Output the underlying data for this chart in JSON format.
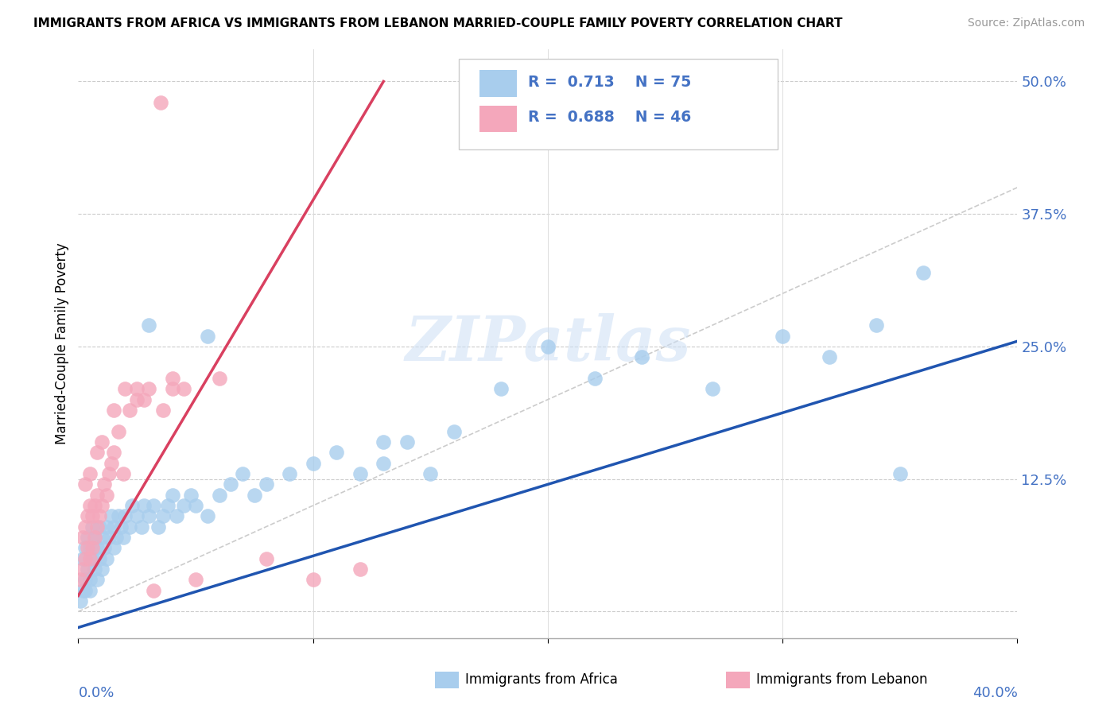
{
  "title": "IMMIGRANTS FROM AFRICA VS IMMIGRANTS FROM LEBANON MARRIED-COUPLE FAMILY POVERTY CORRELATION CHART",
  "source": "Source: ZipAtlas.com",
  "ylabel": "Married-Couple Family Poverty",
  "xlim": [
    0.0,
    0.4
  ],
  "ylim": [
    -0.025,
    0.53
  ],
  "legend_africa_R": "0.713",
  "legend_africa_N": "75",
  "legend_lebanon_R": "0.688",
  "legend_lebanon_N": "46",
  "africa_color": "#A8CDED",
  "lebanon_color": "#F4A7BB",
  "africa_line_color": "#2055B0",
  "lebanon_line_color": "#D94060",
  "diagonal_color": "#CCCCCC",
  "watermark": "ZIPatlas",
  "africa_line_x0": 0.0,
  "africa_line_y0": -0.015,
  "africa_line_x1": 0.4,
  "africa_line_y1": 0.255,
  "lebanon_line_x0": 0.0,
  "lebanon_line_y0": 0.015,
  "lebanon_line_x1": 0.13,
  "lebanon_line_y1": 0.5,
  "ytick_vals": [
    0.0,
    0.125,
    0.25,
    0.375,
    0.5
  ],
  "ytick_labels": [
    "",
    "12.5%",
    "25.0%",
    "37.5%",
    "50.0%"
  ],
  "africa_x": [
    0.001,
    0.002,
    0.002,
    0.003,
    0.003,
    0.003,
    0.004,
    0.004,
    0.005,
    0.005,
    0.005,
    0.006,
    0.006,
    0.007,
    0.007,
    0.008,
    0.008,
    0.009,
    0.009,
    0.01,
    0.01,
    0.011,
    0.012,
    0.012,
    0.013,
    0.014,
    0.015,
    0.015,
    0.016,
    0.017,
    0.018,
    0.019,
    0.02,
    0.022,
    0.023,
    0.025,
    0.027,
    0.028,
    0.03,
    0.032,
    0.034,
    0.036,
    0.038,
    0.04,
    0.042,
    0.045,
    0.048,
    0.05,
    0.055,
    0.06,
    0.065,
    0.07,
    0.075,
    0.08,
    0.09,
    0.1,
    0.11,
    0.12,
    0.13,
    0.14,
    0.15,
    0.16,
    0.18,
    0.2,
    0.22,
    0.24,
    0.27,
    0.3,
    0.32,
    0.34,
    0.35,
    0.36,
    0.03,
    0.055,
    0.13
  ],
  "africa_y": [
    0.01,
    0.02,
    0.05,
    0.03,
    0.06,
    0.02,
    0.04,
    0.07,
    0.03,
    0.06,
    0.02,
    0.05,
    0.08,
    0.04,
    0.07,
    0.03,
    0.06,
    0.05,
    0.08,
    0.04,
    0.07,
    0.06,
    0.08,
    0.05,
    0.07,
    0.09,
    0.06,
    0.08,
    0.07,
    0.09,
    0.08,
    0.07,
    0.09,
    0.08,
    0.1,
    0.09,
    0.08,
    0.1,
    0.09,
    0.1,
    0.08,
    0.09,
    0.1,
    0.11,
    0.09,
    0.1,
    0.11,
    0.1,
    0.09,
    0.11,
    0.12,
    0.13,
    0.11,
    0.12,
    0.13,
    0.14,
    0.15,
    0.13,
    0.14,
    0.16,
    0.13,
    0.17,
    0.21,
    0.25,
    0.22,
    0.24,
    0.21,
    0.26,
    0.24,
    0.27,
    0.13,
    0.32,
    0.27,
    0.26,
    0.16
  ],
  "lebanon_x": [
    0.001,
    0.002,
    0.002,
    0.003,
    0.003,
    0.004,
    0.004,
    0.005,
    0.005,
    0.006,
    0.006,
    0.007,
    0.007,
    0.008,
    0.008,
    0.009,
    0.01,
    0.011,
    0.012,
    0.013,
    0.014,
    0.015,
    0.017,
    0.019,
    0.022,
    0.025,
    0.028,
    0.032,
    0.036,
    0.04,
    0.003,
    0.005,
    0.008,
    0.01,
    0.015,
    0.02,
    0.025,
    0.03,
    0.035,
    0.04,
    0.045,
    0.05,
    0.06,
    0.08,
    0.1,
    0.12
  ],
  "lebanon_y": [
    0.03,
    0.04,
    0.07,
    0.05,
    0.08,
    0.06,
    0.09,
    0.05,
    0.1,
    0.06,
    0.09,
    0.07,
    0.1,
    0.08,
    0.11,
    0.09,
    0.1,
    0.12,
    0.11,
    0.13,
    0.14,
    0.15,
    0.17,
    0.13,
    0.19,
    0.21,
    0.2,
    0.02,
    0.19,
    0.21,
    0.12,
    0.13,
    0.15,
    0.16,
    0.19,
    0.21,
    0.2,
    0.21,
    0.48,
    0.22,
    0.21,
    0.03,
    0.22,
    0.05,
    0.03,
    0.04
  ],
  "lebanon_extra_x": [
    0.035
  ],
  "lebanon_extra_y": [
    0.48
  ]
}
